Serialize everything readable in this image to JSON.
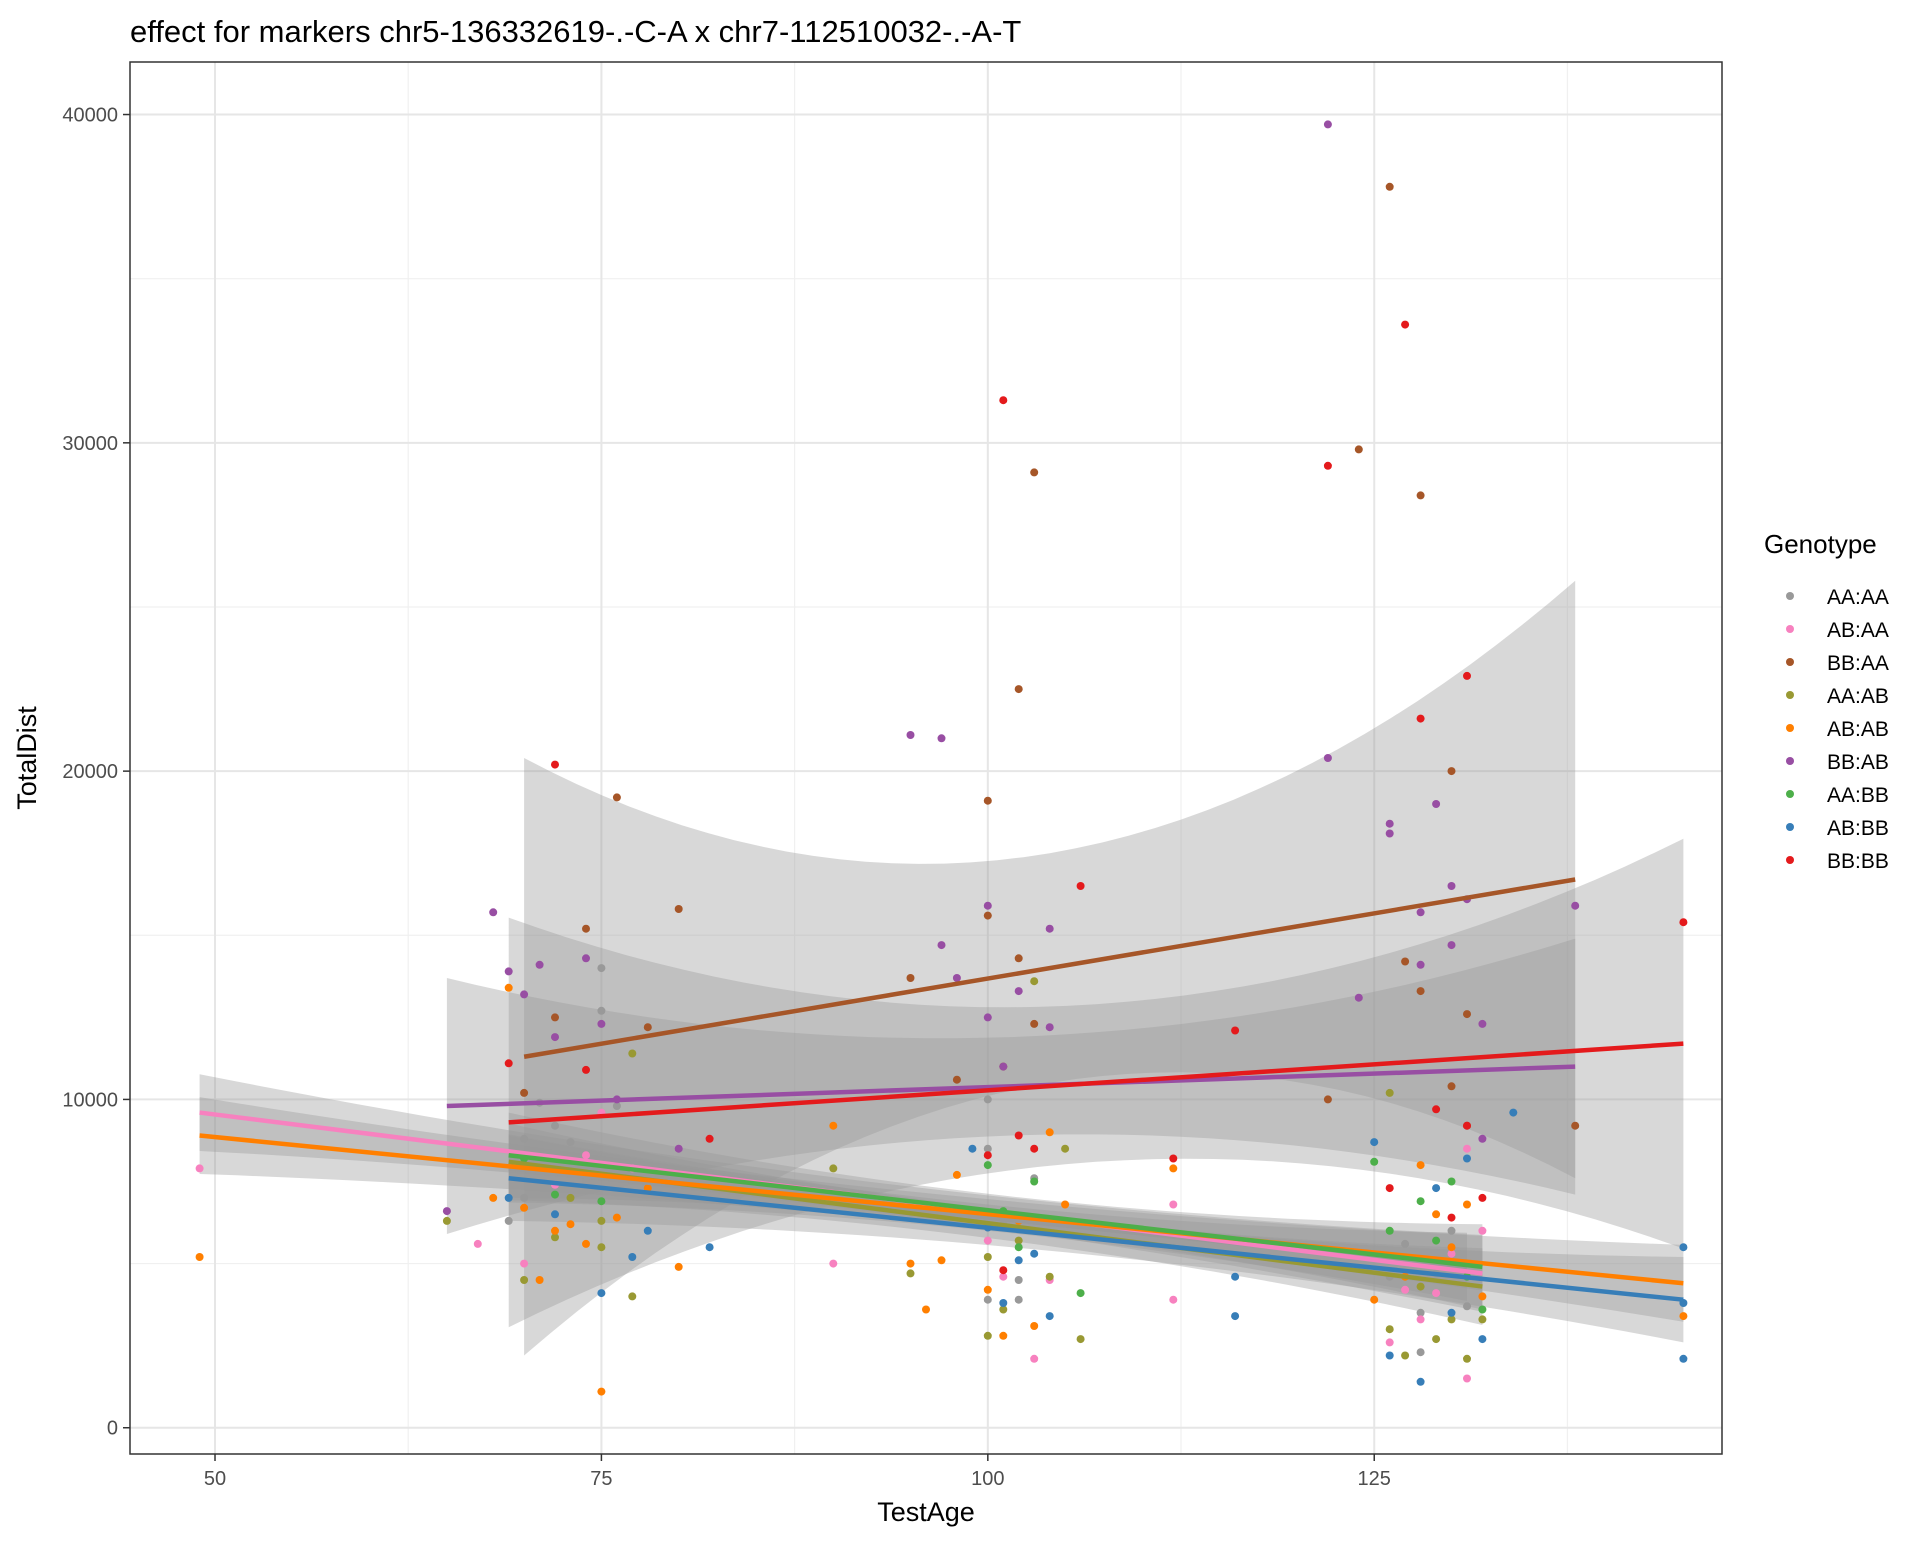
{
  "chart_data": {
    "type": "scatter",
    "title": "effect for markers chr5-136332619-.-C-A x chr7-112510032-.-A-T",
    "xlabel": "TestAge",
    "ylabel": "TotalDist",
    "xlim": [
      44.5,
      147.5
    ],
    "ylim": [
      -800,
      41600
    ],
    "x_ticks": [
      50,
      75,
      100,
      125
    ],
    "x_tick_labels": [
      "50",
      "75",
      "100",
      "125"
    ],
    "y_ticks": [
      0,
      10000,
      20000,
      30000,
      40000
    ],
    "y_tick_labels": [
      "0",
      "10000",
      "20000",
      "30000",
      "40000"
    ],
    "grid": true,
    "legend_title": "Genotype",
    "legend_position": "right",
    "series": [
      {
        "name": "AA:AA",
        "color": "#999999",
        "points": [
          [
            69,
            6300
          ],
          [
            70,
            8800
          ],
          [
            71,
            9900
          ],
          [
            72,
            9200
          ],
          [
            73,
            8700
          ],
          [
            74,
            7500
          ],
          [
            75,
            14000
          ],
          [
            75,
            12700
          ],
          [
            76,
            9800
          ],
          [
            70,
            7000
          ],
          [
            100,
            10000
          ],
          [
            100,
            8500
          ],
          [
            101,
            6200
          ],
          [
            102,
            4500
          ],
          [
            100,
            3900
          ],
          [
            102,
            3900
          ],
          [
            103,
            7600
          ],
          [
            127,
            5600
          ],
          [
            128,
            3500
          ],
          [
            129,
            4700
          ],
          [
            130,
            6000
          ],
          [
            131,
            3700
          ],
          [
            126,
            4600
          ],
          [
            128,
            2300
          ]
        ],
        "fit": {
          "x": [
            69,
            131
          ],
          "y": [
            7900,
            4900
          ]
        },
        "ci_width": 400
      },
      {
        "name": "AB:AA",
        "color": "#F781BF",
        "points": [
          [
            49,
            7900
          ],
          [
            67,
            5600
          ],
          [
            70,
            5000
          ],
          [
            72,
            7400
          ],
          [
            74,
            8300
          ],
          [
            75,
            9600
          ],
          [
            77,
            7900
          ],
          [
            90,
            5000
          ],
          [
            100,
            5700
          ],
          [
            101,
            4600
          ],
          [
            103,
            2100
          ],
          [
            104,
            4500
          ],
          [
            112,
            6800
          ],
          [
            112,
            3900
          ],
          [
            126,
            2600
          ],
          [
            128,
            3300
          ],
          [
            129,
            4100
          ],
          [
            130,
            5300
          ],
          [
            131,
            1500
          ],
          [
            131,
            8500
          ],
          [
            132,
            6000
          ],
          [
            127,
            4200
          ]
        ],
        "fit": {
          "x": [
            49,
            132
          ],
          "y": [
            9600,
            4700
          ]
        },
        "ci_width": 450
      },
      {
        "name": "BB:AA",
        "color": "#A65628",
        "points": [
          [
            70,
            10200
          ],
          [
            72,
            12500
          ],
          [
            74,
            15200
          ],
          [
            76,
            19200
          ],
          [
            78,
            12200
          ],
          [
            80,
            15800
          ],
          [
            95,
            13700
          ],
          [
            98,
            10600
          ],
          [
            100,
            19100
          ],
          [
            100,
            15600
          ],
          [
            101,
            11000
          ],
          [
            102,
            22500
          ],
          [
            103,
            29100
          ],
          [
            103,
            12300
          ],
          [
            102,
            14300
          ],
          [
            124,
            29800
          ],
          [
            126,
            37800
          ],
          [
            127,
            14200
          ],
          [
            128,
            28400
          ],
          [
            128,
            13300
          ],
          [
            130,
            20000
          ],
          [
            131,
            12600
          ],
          [
            131,
            9200
          ],
          [
            138,
            9200
          ],
          [
            122,
            10000
          ],
          [
            130,
            10400
          ]
        ],
        "fit": {
          "x": [
            70,
            138
          ],
          "y": [
            11300,
            16700
          ]
        },
        "ci_width": 3500
      },
      {
        "name": "AA:AB",
        "color": "#999933",
        "points": [
          [
            65,
            6300
          ],
          [
            70,
            4500
          ],
          [
            72,
            5800
          ],
          [
            73,
            7000
          ],
          [
            75,
            6300
          ],
          [
            75,
            5500
          ],
          [
            77,
            4000
          ],
          [
            77,
            11400
          ],
          [
            90,
            7900
          ],
          [
            95,
            4700
          ],
          [
            100,
            2800
          ],
          [
            100,
            5200
          ],
          [
            101,
            3600
          ],
          [
            102,
            5700
          ],
          [
            103,
            13600
          ],
          [
            104,
            4600
          ],
          [
            105,
            8500
          ],
          [
            106,
            2700
          ],
          [
            126,
            3000
          ],
          [
            127,
            2200
          ],
          [
            128,
            4300
          ],
          [
            129,
            2700
          ],
          [
            130,
            3300
          ],
          [
            131,
            2100
          ],
          [
            132,
            3300
          ],
          [
            126,
            10200
          ]
        ],
        "fit": {
          "x": [
            69,
            132
          ],
          "y": [
            8100,
            4300
          ]
        },
        "ci_width": 450
      },
      {
        "name": "AB:AB",
        "color": "#FF7F00",
        "points": [
          [
            49,
            5200
          ],
          [
            68,
            7000
          ],
          [
            69,
            13400
          ],
          [
            70,
            6700
          ],
          [
            71,
            4500
          ],
          [
            72,
            6000
          ],
          [
            73,
            6200
          ],
          [
            74,
            5600
          ],
          [
            75,
            1100
          ],
          [
            76,
            6400
          ],
          [
            78,
            7300
          ],
          [
            80,
            4900
          ],
          [
            90,
            9200
          ],
          [
            95,
            5000
          ],
          [
            96,
            3600
          ],
          [
            97,
            5100
          ],
          [
            98,
            7700
          ],
          [
            100,
            4200
          ],
          [
            101,
            2800
          ],
          [
            102,
            6300
          ],
          [
            103,
            3100
          ],
          [
            104,
            9000
          ],
          [
            105,
            6800
          ],
          [
            112,
            7900
          ],
          [
            125,
            3900
          ],
          [
            127,
            4600
          ],
          [
            128,
            8000
          ],
          [
            129,
            6500
          ],
          [
            130,
            5500
          ],
          [
            131,
            6800
          ],
          [
            132,
            4000
          ],
          [
            145,
            3400
          ]
        ],
        "fit": {
          "x": [
            49,
            145
          ],
          "y": [
            8900,
            4400
          ]
        },
        "ci_width": 450
      },
      {
        "name": "BB:AB",
        "color": "#984EA3",
        "points": [
          [
            65,
            6600
          ],
          [
            68,
            15700
          ],
          [
            69,
            13900
          ],
          [
            70,
            13200
          ],
          [
            71,
            14100
          ],
          [
            72,
            11900
          ],
          [
            74,
            14300
          ],
          [
            75,
            12300
          ],
          [
            76,
            10000
          ],
          [
            80,
            8500
          ],
          [
            95,
            21100
          ],
          [
            97,
            21000
          ],
          [
            97,
            14700
          ],
          [
            98,
            13700
          ],
          [
            100,
            15900
          ],
          [
            100,
            12500
          ],
          [
            101,
            11000
          ],
          [
            102,
            13300
          ],
          [
            104,
            15200
          ],
          [
            104,
            12200
          ],
          [
            122,
            39700
          ],
          [
            122,
            20400
          ],
          [
            124,
            13100
          ],
          [
            126,
            18400
          ],
          [
            126,
            18100
          ],
          [
            128,
            15700
          ],
          [
            128,
            14100
          ],
          [
            129,
            19000
          ],
          [
            130,
            16500
          ],
          [
            130,
            14700
          ],
          [
            131,
            16100
          ],
          [
            132,
            12300
          ],
          [
            138,
            15900
          ],
          [
            132,
            8800
          ]
        ],
        "fit": {
          "x": [
            65,
            138
          ],
          "y": [
            9800,
            11000
          ]
        },
        "ci_width": 1500
      },
      {
        "name": "AA:BB",
        "color": "#4DAF4A",
        "points": [
          [
            70,
            8200
          ],
          [
            72,
            7100
          ],
          [
            75,
            6900
          ],
          [
            100,
            8000
          ],
          [
            101,
            6600
          ],
          [
            102,
            5500
          ],
          [
            103,
            7500
          ],
          [
            106,
            4100
          ],
          [
            125,
            8100
          ],
          [
            126,
            6000
          ],
          [
            128,
            6900
          ],
          [
            129,
            5700
          ],
          [
            130,
            7500
          ],
          [
            131,
            4600
          ],
          [
            132,
            3600
          ]
        ],
        "fit": {
          "x": [
            69,
            132
          ],
          "y": [
            8300,
            4900
          ]
        },
        "ci_width": 500
      },
      {
        "name": "AB:BB",
        "color": "#377EB8",
        "points": [
          [
            69,
            7000
          ],
          [
            72,
            6500
          ],
          [
            75,
            4100
          ],
          [
            77,
            5200
          ],
          [
            78,
            6000
          ],
          [
            82,
            5500
          ],
          [
            99,
            8500
          ],
          [
            100,
            6100
          ],
          [
            101,
            3800
          ],
          [
            102,
            5100
          ],
          [
            103,
            5300
          ],
          [
            104,
            3400
          ],
          [
            116,
            4600
          ],
          [
            116,
            3400
          ],
          [
            125,
            8700
          ],
          [
            126,
            2200
          ],
          [
            128,
            1400
          ],
          [
            129,
            7300
          ],
          [
            130,
            3500
          ],
          [
            131,
            8200
          ],
          [
            132,
            2700
          ],
          [
            134,
            9600
          ],
          [
            145,
            5500
          ],
          [
            145,
            3800
          ],
          [
            145,
            2100
          ]
        ],
        "fit": {
          "x": [
            69,
            145
          ],
          "y": [
            7600,
            3900
          ]
        },
        "ci_width": 500
      },
      {
        "name": "BB:BB",
        "color": "#E41A1C",
        "points": [
          [
            69,
            11100
          ],
          [
            72,
            20200
          ],
          [
            74,
            10900
          ],
          [
            82,
            8800
          ],
          [
            100,
            8300
          ],
          [
            101,
            31300
          ],
          [
            101,
            4800
          ],
          [
            102,
            8900
          ],
          [
            103,
            8500
          ],
          [
            106,
            16500
          ],
          [
            112,
            8200
          ],
          [
            116,
            12100
          ],
          [
            122,
            29300
          ],
          [
            127,
            33600
          ],
          [
            128,
            21600
          ],
          [
            131,
            22900
          ],
          [
            126,
            7300
          ],
          [
            129,
            9700
          ],
          [
            130,
            6400
          ],
          [
            131,
            9200
          ],
          [
            132,
            7000
          ],
          [
            145,
            15400
          ]
        ],
        "fit": {
          "x": [
            69,
            145
          ],
          "y": [
            9300,
            11700
          ]
        },
        "ci_width": 2400
      }
    ]
  }
}
